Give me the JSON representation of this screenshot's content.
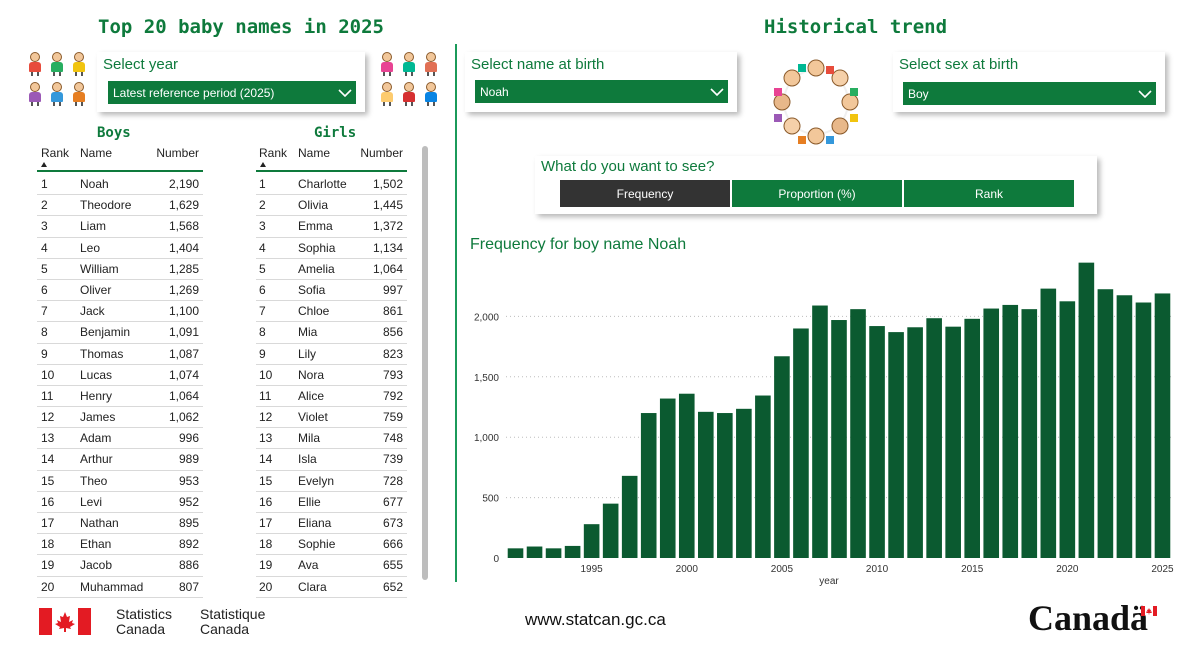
{
  "header": {
    "top_title": "Top 20 baby names in 2025",
    "trend_title": "Historical trend"
  },
  "year_slicer": {
    "label": "Select year",
    "value": "Latest reference period (2025)"
  },
  "boys": {
    "heading": "Boys",
    "columns": {
      "rank": "Rank",
      "name": "Name",
      "number": "Number"
    },
    "rows": [
      {
        "rank": "1",
        "name": "Noah",
        "number": "2,190"
      },
      {
        "rank": "2",
        "name": "Theodore",
        "number": "1,629"
      },
      {
        "rank": "3",
        "name": "Liam",
        "number": "1,568"
      },
      {
        "rank": "4",
        "name": "Leo",
        "number": "1,404"
      },
      {
        "rank": "5",
        "name": "William",
        "number": "1,285"
      },
      {
        "rank": "6",
        "name": "Oliver",
        "number": "1,269"
      },
      {
        "rank": "7",
        "name": "Jack",
        "number": "1,100"
      },
      {
        "rank": "8",
        "name": "Benjamin",
        "number": "1,091"
      },
      {
        "rank": "9",
        "name": "Thomas",
        "number": "1,087"
      },
      {
        "rank": "10",
        "name": "Lucas",
        "number": "1,074"
      },
      {
        "rank": "11",
        "name": "Henry",
        "number": "1,064"
      },
      {
        "rank": "12",
        "name": "James",
        "number": "1,062"
      },
      {
        "rank": "13",
        "name": "Adam",
        "number": "996"
      },
      {
        "rank": "14",
        "name": "Arthur",
        "number": "989"
      },
      {
        "rank": "15",
        "name": "Theo",
        "number": "953"
      },
      {
        "rank": "16",
        "name": "Levi",
        "number": "952"
      },
      {
        "rank": "17",
        "name": "Nathan",
        "number": "895"
      },
      {
        "rank": "18",
        "name": "Ethan",
        "number": "892"
      },
      {
        "rank": "19",
        "name": "Jacob",
        "number": "886"
      },
      {
        "rank": "20",
        "name": "Muhammad",
        "number": "807"
      }
    ]
  },
  "girls": {
    "heading": "Girls",
    "columns": {
      "rank": "Rank",
      "name": "Name",
      "number": "Number"
    },
    "rows": [
      {
        "rank": "1",
        "name": "Charlotte",
        "number": "1,502"
      },
      {
        "rank": "2",
        "name": "Olivia",
        "number": "1,445"
      },
      {
        "rank": "3",
        "name": "Emma",
        "number": "1,372"
      },
      {
        "rank": "4",
        "name": "Sophia",
        "number": "1,134"
      },
      {
        "rank": "5",
        "name": "Amelia",
        "number": "1,064"
      },
      {
        "rank": "6",
        "name": "Sofia",
        "number": "997"
      },
      {
        "rank": "7",
        "name": "Chloe",
        "number": "861"
      },
      {
        "rank": "8",
        "name": "Mia",
        "number": "856"
      },
      {
        "rank": "9",
        "name": "Lily",
        "number": "823"
      },
      {
        "rank": "10",
        "name": "Nora",
        "number": "793"
      },
      {
        "rank": "11",
        "name": "Alice",
        "number": "792"
      },
      {
        "rank": "12",
        "name": "Violet",
        "number": "759"
      },
      {
        "rank": "13",
        "name": "Mila",
        "number": "748"
      },
      {
        "rank": "14",
        "name": "Isla",
        "number": "739"
      },
      {
        "rank": "15",
        "name": "Evelyn",
        "number": "728"
      },
      {
        "rank": "16",
        "name": "Ellie",
        "number": "677"
      },
      {
        "rank": "17",
        "name": "Eliana",
        "number": "673"
      },
      {
        "rank": "18",
        "name": "Sophie",
        "number": "666"
      },
      {
        "rank": "19",
        "name": "Ava",
        "number": "655"
      },
      {
        "rank": "20",
        "name": "Clara",
        "number": "652"
      }
    ]
  },
  "name_slicer": {
    "label": "Select name at birth",
    "value": "Noah"
  },
  "sex_slicer": {
    "label": "Select sex at birth",
    "value": "Boy"
  },
  "view_toggle": {
    "label": "What do you want to see?",
    "options": [
      "Frequency",
      "Proportion (%)",
      "Rank"
    ],
    "selected": "Frequency"
  },
  "icons": {
    "dropdown": "chevron-down-icon",
    "kids_left": "children-clipart-icon",
    "kids_right": "children-clipart-icon",
    "kids_circle": "children-circle-clipart-icon",
    "flag": "canada-flag-icon"
  },
  "colors": {
    "brand_green": "#0e7a3c",
    "bar_green": "#0b5a30",
    "selected_dark": "#333333",
    "flag_red": "#e31b23"
  },
  "chart_data": {
    "type": "bar",
    "title": "Frequency for boy name Noah",
    "xlabel": "year",
    "ylabel": "",
    "x": [
      1991,
      1992,
      1993,
      1994,
      1995,
      1996,
      1997,
      1998,
      1999,
      2000,
      2001,
      2002,
      2003,
      2004,
      2005,
      2006,
      2007,
      2008,
      2009,
      2010,
      2011,
      2012,
      2013,
      2014,
      2015,
      2016,
      2017,
      2018,
      2019,
      2020,
      2021,
      2022,
      2023,
      2024,
      2025
    ],
    "values": [
      80,
      95,
      80,
      100,
      280,
      450,
      680,
      1200,
      1320,
      1360,
      1210,
      1200,
      1235,
      1345,
      1670,
      1900,
      2090,
      1970,
      2060,
      1920,
      1870,
      1910,
      1985,
      1915,
      1980,
      2065,
      2095,
      2060,
      2230,
      2125,
      2445,
      2225,
      2175,
      2115,
      2190
    ],
    "yticks": [
      0,
      500,
      1000,
      1500,
      2000
    ],
    "ytick_labels": [
      "0",
      "500",
      "1,000",
      "1,500",
      "2,000"
    ],
    "xticks": [
      1995,
      2000,
      2005,
      2010,
      2015,
      2020,
      2025
    ],
    "ylim": [
      0,
      2500
    ],
    "grid": true
  },
  "footer": {
    "stat_en_1": "Statistics",
    "stat_en_2": "Canada",
    "stat_fr_1": "Statistique",
    "stat_fr_2": "Canada",
    "url": "www.statcan.gc.ca",
    "wordmark": "Canadä"
  }
}
